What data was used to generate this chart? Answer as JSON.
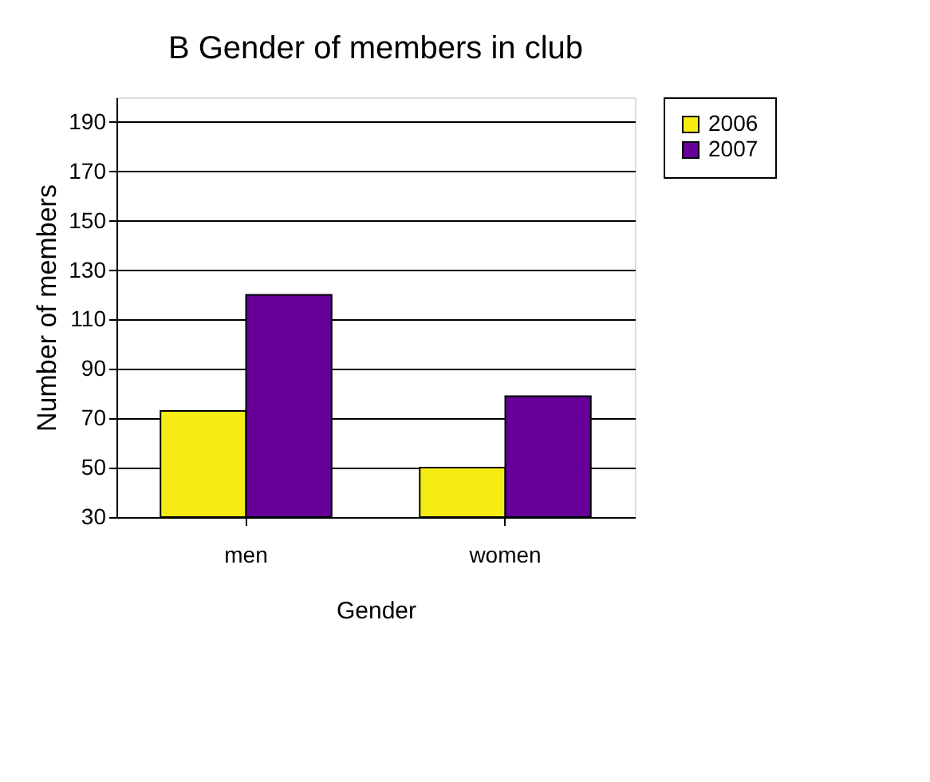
{
  "chart_data": {
    "type": "bar",
    "title": "B Gender of members in club",
    "xlabel": "Gender",
    "ylabel": "Number of members",
    "categories": [
      "men",
      "women"
    ],
    "series": [
      {
        "name": "2006",
        "color": "#f5ec14",
        "values": [
          73,
          50
        ]
      },
      {
        "name": "2007",
        "color": "#660099",
        "values": [
          120,
          79
        ]
      }
    ],
    "ylim": [
      30,
      200
    ],
    "yticks": [
      30,
      50,
      70,
      90,
      110,
      130,
      150,
      170,
      190
    ],
    "grid": "y",
    "legend": "right"
  }
}
